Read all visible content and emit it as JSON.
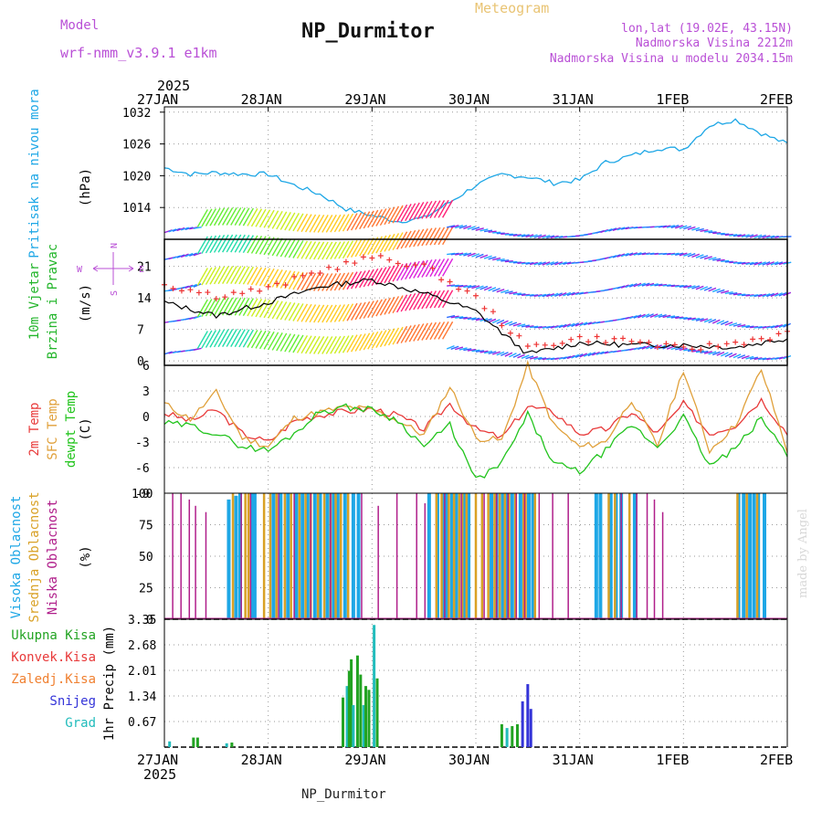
{
  "header": {
    "model_label": "Model",
    "model_name": "wrf-nmm_v3.9.1  e1km",
    "title": "NP_Durmitor",
    "meteogram_label": "Meteogram",
    "coords": "lon,lat (19.02E, 43.15N)",
    "elevation": "Nadmorska Visina 2212m",
    "model_elevation": "Nadmorska Visina u modelu 2034.15m",
    "footer": "NP_Durmitor",
    "credit": "made by Angel"
  },
  "colors": {
    "pressure": "#1ea7e6",
    "speed": "#000000",
    "gust": "#ee3333",
    "t2m": "#e83a3a",
    "sfc": "#e0a03a",
    "dewpt": "#22c41d",
    "high_cloud": "#1ea7e6",
    "mid_cloud": "#d9a126",
    "low_cloud": "#b01e8a",
    "total_precip": "#22a322",
    "conv_precip": "#e83a3a",
    "frozen_precip": "#f08030",
    "snow": "#3434d8",
    "hail": "#22bcbc",
    "purple_text": "#b94fd6"
  },
  "chart_data": [
    {
      "type": "line",
      "panel": "pressure",
      "x_axis_top": {
        "year": "2025",
        "labels": [
          "27JAN",
          "28JAN",
          "29JAN",
          "30JAN",
          "31JAN",
          "1FEB",
          "2FEB"
        ]
      },
      "ylabel": "(hPa)",
      "side_label": "Pritisak na nivou mora",
      "ylim": [
        1008,
        1033
      ],
      "yticks": [
        1014,
        1020,
        1026,
        1032
      ],
      "x_days": [
        0,
        0.25,
        0.5,
        0.75,
        1,
        1.25,
        1.5,
        1.75,
        2,
        2.25,
        2.5,
        2.75,
        3,
        3.25,
        3.5,
        3.75,
        4,
        4.25,
        4.5,
        4.75,
        5,
        5.25,
        5.5,
        5.75,
        6
      ],
      "series": [
        {
          "values": [
            1021.5,
            1020.3,
            1020.6,
            1020.3,
            1020.3,
            1018.2,
            1016.5,
            1013.7,
            1012.5,
            1011.4,
            1012.0,
            1015.0,
            1018.2,
            1020.2,
            1019.8,
            1018.6,
            1019.2,
            1022.5,
            1023.8,
            1025.2,
            1025.0,
            1029.5,
            1030.6,
            1028.0,
            1026.0
          ]
        }
      ]
    },
    {
      "type": "line",
      "panel": "wind",
      "ylabel": "(m/s)",
      "side_labels": [
        "10m Vjetar",
        "Brzina i Pravac"
      ],
      "compass_labels": [
        "N",
        "W",
        "E",
        "S"
      ],
      "ylim": [
        -1,
        27
      ],
      "yticks": [
        0,
        7,
        14,
        21
      ],
      "x_days": [
        0,
        0.5,
        1,
        1.5,
        2,
        2.5,
        3,
        3.5,
        4,
        4.5,
        5,
        5.5,
        6
      ],
      "series": [
        {
          "values": [
            13,
            10,
            13,
            16.5,
            18,
            15,
            11,
            1.5,
            4,
            3.5,
            3.5,
            3,
            5
          ]
        },
        {
          "values": [
            17,
            14.5,
            16,
            20,
            23,
            21,
            14,
            3,
            5,
            4.5,
            2.5,
            4,
            6
          ]
        }
      ]
    },
    {
      "type": "line",
      "panel": "temperature",
      "ylabel": "(C)",
      "side_labels": [
        {
          "text": "2m Temp",
          "color": "#e83a3a"
        },
        {
          "text": "SFC Temp",
          "color": "#e0a03a"
        },
        {
          "text": "dewpt Temp",
          "color": "#22c41d"
        }
      ],
      "ylim": [
        -9,
        6
      ],
      "yticks": [
        -9,
        -6,
        -3,
        0,
        3,
        6
      ],
      "x_days": [
        0,
        0.25,
        0.5,
        0.75,
        1,
        1.25,
        1.5,
        1.75,
        2,
        2.25,
        2.5,
        2.75,
        3,
        3.25,
        3.5,
        3.75,
        4,
        4.25,
        4.5,
        4.75,
        5,
        5.25,
        5.5,
        5.75,
        6
      ],
      "series": [
        {
          "name": "2m Temp",
          "values": [
            0.4,
            -0.5,
            0.8,
            -2,
            -3,
            -0.5,
            0.2,
            0.6,
            0.9,
            0.1,
            -1.5,
            1.5,
            -1.5,
            -2.5,
            1.2,
            0.5,
            -2,
            -1.5,
            0.5,
            -2,
            1.5,
            -2,
            -1,
            2,
            -2
          ]
        },
        {
          "name": "SFC Temp",
          "values": [
            1.5,
            -0.3,
            2.8,
            -2.5,
            -3.5,
            -0.2,
            0.5,
            1.1,
            0.8,
            -0.5,
            -2.2,
            3.5,
            -2.5,
            -2.8,
            6,
            -1,
            -3.6,
            -3,
            2,
            -3.5,
            5.5,
            -4,
            -1,
            5.5,
            -4
          ]
        },
        {
          "name": "dewpt Temp",
          "values": [
            -0.8,
            -1.1,
            -2,
            -3.5,
            -4,
            -2,
            0.6,
            1.1,
            0.8,
            -0.5,
            -3.5,
            -1,
            -7.5,
            -5.5,
            0.2,
            -5.5,
            -6.5,
            -4,
            -1,
            -3.6,
            0,
            -5.8,
            -3.8,
            -0.2,
            -4.5
          ]
        }
      ]
    },
    {
      "type": "bar",
      "panel": "cloud",
      "ylabel": "(%)",
      "side_labels": [
        {
          "text": "Visoka Oblacnost",
          "color": "#1ea7e6"
        },
        {
          "text": "Srednja Oblacnost",
          "color": "#d9a126"
        },
        {
          "text": "Niska Oblacnost",
          "color": "#b01e8a"
        }
      ],
      "ylim": [
        0,
        100
      ],
      "yticks": [
        0,
        25,
        50,
        75,
        100
      ],
      "series": [
        {
          "name": "Visoka Oblacnost",
          "x_days": [
            0.62,
            0.69,
            0.73,
            0.85,
            0.87,
            1.05,
            1.12,
            1.19,
            1.27,
            1.33,
            1.38,
            1.45,
            1.5,
            1.57,
            1.63,
            1.67,
            1.74,
            1.82,
            1.87,
            2.55,
            2.63,
            2.69,
            2.72,
            2.77,
            2.81,
            2.89,
            2.93,
            3.15,
            3.2,
            3.26,
            3.29,
            3.35,
            3.43,
            3.51,
            3.55,
            4.16,
            4.2,
            4.3,
            4.35,
            4.4,
            4.53,
            5.53,
            5.58,
            5.64,
            5.68,
            5.72,
            5.78
          ],
          "values": [
            95,
            98,
            100,
            100,
            100,
            100,
            100,
            100,
            100,
            100,
            100,
            100,
            100,
            100,
            100,
            100,
            100,
            100,
            100,
            100,
            100,
            100,
            100,
            100,
            100,
            100,
            100,
            100,
            100,
            100,
            100,
            100,
            100,
            100,
            100,
            100,
            100,
            100,
            100,
            100,
            100,
            100,
            100,
            100,
            100,
            100,
            100
          ]
        },
        {
          "name": "Srednja Oblacnost",
          "x_days": [
            0.66,
            0.78,
            0.81,
            0.96,
            1.02,
            1.08,
            1.16,
            1.22,
            1.3,
            1.36,
            1.41,
            1.48,
            1.54,
            1.6,
            1.65,
            1.7,
            1.77,
            2.62,
            2.67,
            2.74,
            2.79,
            2.84,
            2.87,
            2.91,
            3.0,
            3.06,
            3.12,
            3.18,
            3.23,
            3.28,
            3.32,
            3.38,
            3.46,
            3.48,
            3.57,
            4.28,
            4.34,
            4.48,
            5.52,
            5.61,
            5.71
          ],
          "values": [
            100,
            100,
            100,
            100,
            100,
            100,
            100,
            100,
            100,
            100,
            100,
            100,
            100,
            100,
            100,
            100,
            100,
            100,
            100,
            100,
            100,
            100,
            100,
            100,
            100,
            100,
            100,
            100,
            100,
            100,
            100,
            100,
            100,
            100,
            100,
            100,
            100,
            100,
            100,
            100,
            100
          ]
        },
        {
          "name": "Niska Oblacnost",
          "x_days": [
            0.08,
            0.16,
            0.24,
            0.3,
            0.4,
            0.74,
            0.83,
            1.1,
            1.25,
            1.41,
            1.6,
            1.9,
            2.06,
            2.24,
            2.43,
            2.51,
            2.7,
            2.86,
            3.08,
            3.2,
            3.31,
            3.39,
            3.47,
            3.61,
            3.74,
            3.89,
            4.4,
            4.55,
            4.65,
            4.72,
            4.8
          ],
          "values": [
            100,
            100,
            95,
            90,
            85,
            100,
            100,
            100,
            100,
            100,
            100,
            100,
            90,
            100,
            100,
            92,
            100,
            100,
            100,
            100,
            100,
            100,
            100,
            100,
            100,
            100,
            100,
            100,
            100,
            95,
            85
          ]
        }
      ]
    },
    {
      "type": "bar",
      "panel": "precip",
      "ylabel": "1hr Precip (mm)",
      "side_labels": [
        {
          "text": "Ukupna Kisa",
          "color": "#22a322"
        },
        {
          "text": "Konvek.Kisa",
          "color": "#e83a3a"
        },
        {
          "text": "Zaledj.Kisa",
          "color": "#f08030"
        },
        {
          "text": "Snijeg",
          "color": "#3434d8"
        },
        {
          "text": "Grad",
          "color": "#22bcbc"
        }
      ],
      "x_axis_bottom": {
        "year": "2025",
        "labels": [
          "27JAN",
          "28JAN",
          "29JAN",
          "30JAN",
          "31JAN",
          "1FEB",
          "2FEB"
        ]
      },
      "ylim": [
        0,
        3.35
      ],
      "yticks": [
        0.67,
        1.34,
        2.01,
        2.68,
        3.35
      ],
      "x_days": [
        0.05,
        0.28,
        0.32,
        0.6,
        0.65,
        1.72,
        1.76,
        1.78,
        1.8,
        1.82,
        1.86,
        1.89,
        1.92,
        1.94,
        1.97,
        2.02,
        2.05,
        3.25,
        3.3,
        3.35,
        3.4,
        3.45,
        3.5,
        3.53
      ],
      "values": [
        0.15,
        0.25,
        0.25,
        0.1,
        0.12,
        1.3,
        1.6,
        2.0,
        2.3,
        1.1,
        2.4,
        1.9,
        1.1,
        1.6,
        1.5,
        3.2,
        1.8,
        0.6,
        0.5,
        0.55,
        0.6,
        1.2,
        1.65,
        1.0
      ]
    }
  ]
}
